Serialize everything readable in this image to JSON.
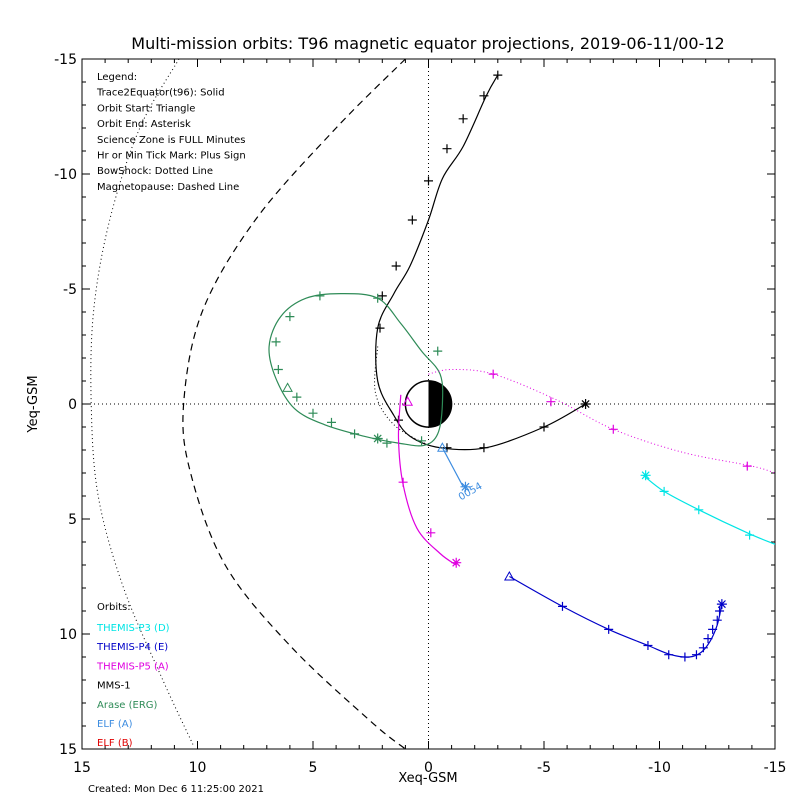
{
  "chart_data": {
    "type": "line",
    "title": "Multi-mission orbits: T96 magnetic equator projections, 2019-06-11/00-12",
    "xlabel": "Xeq-GSM",
    "ylabel": "Yeq-GSM",
    "xlim": [
      15,
      -15
    ],
    "ylim": [
      15,
      -15
    ],
    "xticks": [
      {
        "v": 15,
        "label": "15"
      },
      {
        "v": 10,
        "label": "10"
      },
      {
        "v": 5,
        "label": "5"
      },
      {
        "v": 0,
        "label": "0"
      },
      {
        "v": -5,
        "label": "-5"
      },
      {
        "v": -10,
        "label": "-10"
      },
      {
        "v": -15,
        "label": "-15"
      }
    ],
    "yticks": [
      {
        "v": -15,
        "label": "-15"
      },
      {
        "v": -10,
        "label": "-10"
      },
      {
        "v": -5,
        "label": "-5"
      },
      {
        "v": 0,
        "label": "0"
      },
      {
        "v": 5,
        "label": "5"
      },
      {
        "v": 10,
        "label": "10"
      },
      {
        "v": 15,
        "label": "15"
      }
    ],
    "legend_lines": [
      "Legend:",
      "Trace2Equator(t96): Solid",
      "Orbit Start: Triangle",
      "Orbit End: Asterisk",
      "Science Zone is FULL Minutes",
      "Hr or Min Tick Mark: Plus Sign",
      "BowShock: Dotted Line",
      "Magnetopause: Dashed Line"
    ],
    "orbits_title": "Orbits:",
    "orbits_legend": [
      {
        "label": "THEMIS-P3 (D)",
        "color": "#00e5e5"
      },
      {
        "label": "THEMIS-P4 (E)",
        "color": "#0000c8"
      },
      {
        "label": "THEMIS-P5 (A)",
        "color": "#e000e0"
      },
      {
        "label": "MMS-1",
        "color": "#000000"
      },
      {
        "label": "Arase (ERG)",
        "color": "#2e8b57"
      },
      {
        "label": "ELF (A)",
        "color": "#3c8ce0"
      },
      {
        "label": "ELF (B)",
        "color": "#e00000"
      }
    ],
    "bow_shock": [
      [
        10.8,
        -15
      ],
      [
        12.5,
        -12
      ],
      [
        13.8,
        -8
      ],
      [
        14.5,
        -4
      ],
      [
        14.6,
        0
      ],
      [
        14.3,
        4
      ],
      [
        13.2,
        8
      ],
      [
        11.5,
        12
      ],
      [
        10.2,
        14.8
      ]
    ],
    "magnetopause": [
      [
        1,
        -15
      ],
      [
        4,
        -12
      ],
      [
        7.5,
        -8
      ],
      [
        9.8,
        -4
      ],
      [
        10.6,
        0
      ],
      [
        10.3,
        3
      ],
      [
        8.8,
        7
      ],
      [
        6,
        10.5
      ],
      [
        2.5,
        13.8
      ],
      [
        1,
        15
      ]
    ],
    "series": [
      {
        "name": "MMS-1",
        "color": "#000000",
        "solid": [
          [
            -3,
            -14.3
          ],
          [
            -2.5,
            -13.4
          ],
          [
            -1.5,
            -11.2
          ],
          [
            -0.6,
            -9.8
          ],
          [
            0,
            -8
          ],
          [
            0.8,
            -6
          ],
          [
            1.5,
            -4.8
          ],
          [
            2.2,
            -3.3
          ],
          [
            2.2,
            -1
          ],
          [
            1.5,
            0.5
          ],
          [
            0.8,
            1.4
          ],
          [
            -0.5,
            1.9
          ],
          [
            -2.5,
            1.9
          ],
          [
            -5,
            1
          ],
          [
            -6.8,
            0
          ]
        ],
        "dotted": [
          [
            2.2,
            -2.5
          ],
          [
            2.3,
            -0.5
          ],
          [
            1.5,
            0.9
          ],
          [
            0,
            1.8
          ]
        ],
        "ticks": [
          [
            -3,
            -14.3
          ],
          [
            -2.4,
            -13.4
          ],
          [
            -1.5,
            -12.4
          ],
          [
            -0.8,
            -11.1
          ],
          [
            0,
            -9.7
          ],
          [
            0.7,
            -8
          ],
          [
            1.4,
            -6
          ],
          [
            2,
            -4.7
          ],
          [
            2.1,
            -3.3
          ],
          [
            1.3,
            0.7
          ],
          [
            -0.8,
            1.9
          ],
          [
            -2.4,
            1.9
          ],
          [
            -5,
            1
          ]
        ],
        "start": null,
        "end": [
          -6.8,
          0
        ]
      },
      {
        "name": "Arase (ERG)",
        "color": "#2e8b57",
        "closed": true,
        "solid": [
          [
            2.2,
            -4.6
          ],
          [
            3.8,
            -4.8
          ],
          [
            5.3,
            -4.6
          ],
          [
            6.4,
            -3.8
          ],
          [
            6.9,
            -2.5
          ],
          [
            6.6,
            -1.1
          ],
          [
            5.8,
            0.2
          ],
          [
            4.5,
            0.9
          ],
          [
            2.8,
            1.4
          ],
          [
            1.3,
            1.7
          ],
          [
            0.2,
            1.8
          ],
          [
            -0.4,
            1.3
          ],
          [
            -0.6,
            0
          ],
          [
            -0.5,
            -1.3
          ],
          [
            0.3,
            -2.3
          ],
          [
            1.2,
            -3.5
          ],
          [
            2.2,
            -4.6
          ]
        ],
        "ticks": [
          [
            2.2,
            -4.6
          ],
          [
            4.7,
            -4.7
          ],
          [
            6,
            -3.8
          ],
          [
            6.6,
            -2.7
          ],
          [
            6.5,
            -1.5
          ],
          [
            5.7,
            -0.3
          ],
          [
            5,
            0.4
          ],
          [
            4.2,
            0.8
          ],
          [
            3.2,
            1.3
          ],
          [
            1.8,
            1.7
          ],
          [
            0.3,
            1.6
          ],
          [
            -0.4,
            -2.3
          ]
        ],
        "start": [
          6.1,
          -0.7
        ],
        "end": [
          2.2,
          1.5
        ]
      },
      {
        "name": "THEMIS-P5 (A)",
        "color": "#e000e0",
        "solid": [
          [
            1.2,
            -0.4
          ],
          [
            1.3,
            1.5
          ],
          [
            1.1,
            3.5
          ],
          [
            0.5,
            5.4
          ],
          [
            -0.5,
            6.5
          ],
          [
            -1.2,
            7
          ]
        ],
        "dotted": [
          [
            0,
            -1.3
          ],
          [
            -1,
            -1.5
          ],
          [
            -2.8,
            -1.3
          ],
          [
            -5.5,
            -0.2
          ],
          [
            -8,
            1.1
          ],
          [
            -11,
            2.1
          ],
          [
            -14,
            2.7
          ],
          [
            -15,
            3
          ]
        ],
        "ticks": [
          [
            1.1,
            3.4
          ],
          [
            -0.1,
            5.6
          ],
          [
            -2.8,
            -1.3
          ],
          [
            -5.3,
            -0.1
          ],
          [
            -8,
            1.1
          ],
          [
            -13.8,
            2.7
          ]
        ],
        "start": [
          0.9,
          -0.1
        ],
        "end": [
          -1.2,
          6.9
        ]
      },
      {
        "name": "THEMIS-P3 (D)",
        "color": "#00e5e5",
        "solid": [
          [
            -9.3,
            3.1
          ],
          [
            -10.2,
            3.8
          ],
          [
            -11.7,
            4.6
          ],
          [
            -13.8,
            5.6
          ],
          [
            -15,
            6.1
          ]
        ],
        "ticks": [
          [
            -10.2,
            3.8
          ],
          [
            -11.7,
            4.6
          ],
          [
            -13.9,
            5.7
          ]
        ],
        "start": null,
        "end": [
          -9.4,
          3.1
        ]
      },
      {
        "name": "THEMIS-P4 (E)",
        "color": "#0000c8",
        "solid": [
          [
            -3.5,
            7.5
          ],
          [
            -5.8,
            8.8
          ],
          [
            -7.8,
            9.8
          ],
          [
            -9.5,
            10.5
          ],
          [
            -10.5,
            10.9
          ],
          [
            -11.3,
            11
          ],
          [
            -11.8,
            10.8
          ],
          [
            -12.2,
            10.3
          ],
          [
            -12.5,
            9.6
          ],
          [
            -12.7,
            8.7
          ]
        ],
        "ticks": [
          [
            -5.8,
            8.8
          ],
          [
            -7.8,
            9.8
          ],
          [
            -9.5,
            10.5
          ],
          [
            -10.4,
            10.9
          ],
          [
            -11.1,
            11
          ],
          [
            -11.6,
            10.9
          ],
          [
            -11.9,
            10.6
          ],
          [
            -12.1,
            10.2
          ],
          [
            -12.3,
            9.8
          ],
          [
            -12.5,
            9.4
          ],
          [
            -12.6,
            9
          ]
        ],
        "start": [
          -3.5,
          7.5
        ],
        "end": [
          -12.7,
          8.7
        ]
      },
      {
        "name": "ELF (A)",
        "color": "#3c8ce0",
        "solid": [
          [
            -0.6,
            1.9
          ],
          [
            -1.5,
            3.6
          ]
        ],
        "ticks": [],
        "start": [
          -0.6,
          1.9
        ],
        "end": [
          -1.6,
          3.6
        ]
      }
    ],
    "annotation": {
      "text": "0054",
      "at": [
        -1.4,
        4.2
      ],
      "color": "#3c8ce0"
    }
  },
  "footer": {
    "created": "Created: Mon Dec  6 11:25:00 2021"
  }
}
